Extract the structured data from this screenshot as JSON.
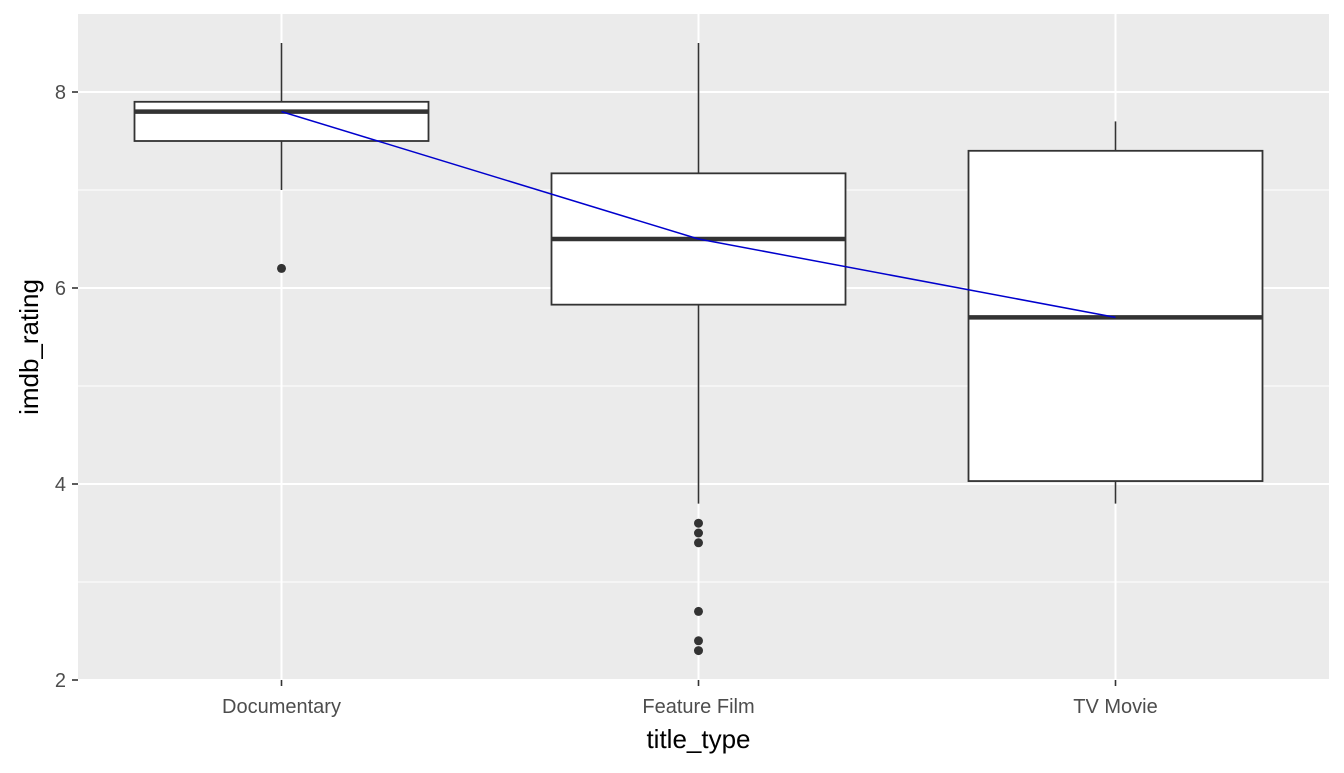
{
  "chart_data": {
    "type": "box",
    "title": "",
    "xlabel": "title_type",
    "ylabel": "imdb_rating",
    "categories": [
      "Documentary",
      "Feature Film",
      "TV Movie"
    ],
    "ylim": [
      2,
      8.8
    ],
    "yticks": [
      2,
      4,
      6,
      8
    ],
    "grid": true,
    "boxes": [
      {
        "category": "Documentary",
        "whisker_low": 7.0,
        "q1": 7.5,
        "median": 7.8,
        "q3": 7.9,
        "whisker_high": 8.5,
        "outliers": [
          6.2
        ]
      },
      {
        "category": "Feature Film",
        "whisker_low": 3.8,
        "q1": 5.83,
        "median": 6.5,
        "q3": 7.17,
        "whisker_high": 8.5,
        "outliers": [
          3.6,
          3.5,
          3.4,
          2.7,
          2.4,
          2.3
        ]
      },
      {
        "category": "TV Movie",
        "whisker_low": 3.8,
        "q1": 4.03,
        "median": 5.7,
        "q3": 7.4,
        "whisker_high": 7.7,
        "outliers": []
      }
    ],
    "median_line": {
      "values": [
        7.8,
        6.5,
        5.7
      ],
      "color": "#0000cd"
    },
    "colors": {
      "panel": "#ebebeb",
      "grid": "#ffffff",
      "box_fill": "#ffffff",
      "box_stroke": "#333333",
      "tick_text": "#4d4d4d"
    }
  }
}
